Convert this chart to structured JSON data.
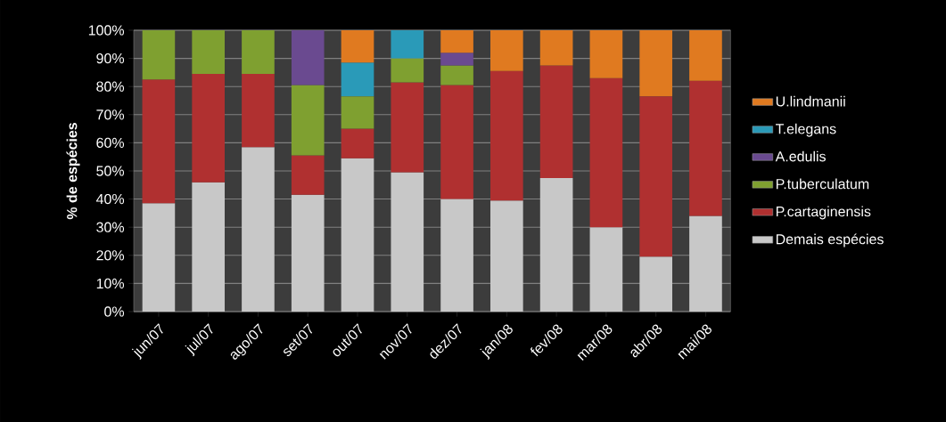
{
  "chart_data": {
    "type": "bar",
    "stacked": true,
    "ylabel": "% de espécies",
    "categories": [
      "jun/07",
      "jul/07",
      "ago/07",
      "set/07",
      "out/07",
      "nov/07",
      "dez/07",
      "jan/08",
      "fev/08",
      "mar/08",
      "abr/08",
      "mai/08"
    ],
    "series": [
      {
        "name": "Demais espécies",
        "color": "#c8c8c8",
        "values": [
          38.5,
          46,
          58.5,
          41.5,
          54.5,
          49.5,
          40,
          39.5,
          47.5,
          30,
          19.5,
          34
        ]
      },
      {
        "name": "P.cartaginensis",
        "color": "#b03030",
        "values": [
          44,
          38.5,
          26,
          14,
          10.5,
          32,
          40.5,
          46,
          40,
          53,
          57,
          48
        ]
      },
      {
        "name": "P.tuberculatum",
        "color": "#7fa030",
        "values": [
          17.5,
          15.5,
          15.5,
          25,
          11.5,
          8.5,
          7,
          null,
          null,
          null,
          null,
          null
        ]
      },
      {
        "name": "A.edulis",
        "color": "#6a4a90",
        "values": [
          null,
          null,
          null,
          19.5,
          null,
          null,
          4.5,
          null,
          null,
          null,
          null,
          null
        ]
      },
      {
        "name": "T.elegans",
        "color": "#2a9ab8",
        "values": [
          null,
          null,
          null,
          null,
          12,
          10,
          null,
          null,
          null,
          null,
          null,
          null
        ]
      },
      {
        "name": "U.lindmanii",
        "color": "#e07a20",
        "values": [
          null,
          null,
          null,
          null,
          11.5,
          null,
          8,
          14.5,
          12.5,
          17,
          23.5,
          18
        ]
      }
    ],
    "ylim": [
      0,
      100
    ],
    "yticks": [
      {
        "value": 0,
        "label": "0%"
      },
      {
        "value": 10,
        "label": "10%"
      },
      {
        "value": 20,
        "label": "20%"
      },
      {
        "value": 30,
        "label": "30%"
      },
      {
        "value": 40,
        "label": "40%"
      },
      {
        "value": 50,
        "label": "50%"
      },
      {
        "value": 60,
        "label": "60%"
      },
      {
        "value": 70,
        "label": "70%"
      },
      {
        "value": 80,
        "label": "80%"
      },
      {
        "value": 90,
        "label": "90%"
      },
      {
        "value": 100,
        "label": "100%"
      }
    ],
    "grid": "y",
    "legend": "right"
  }
}
